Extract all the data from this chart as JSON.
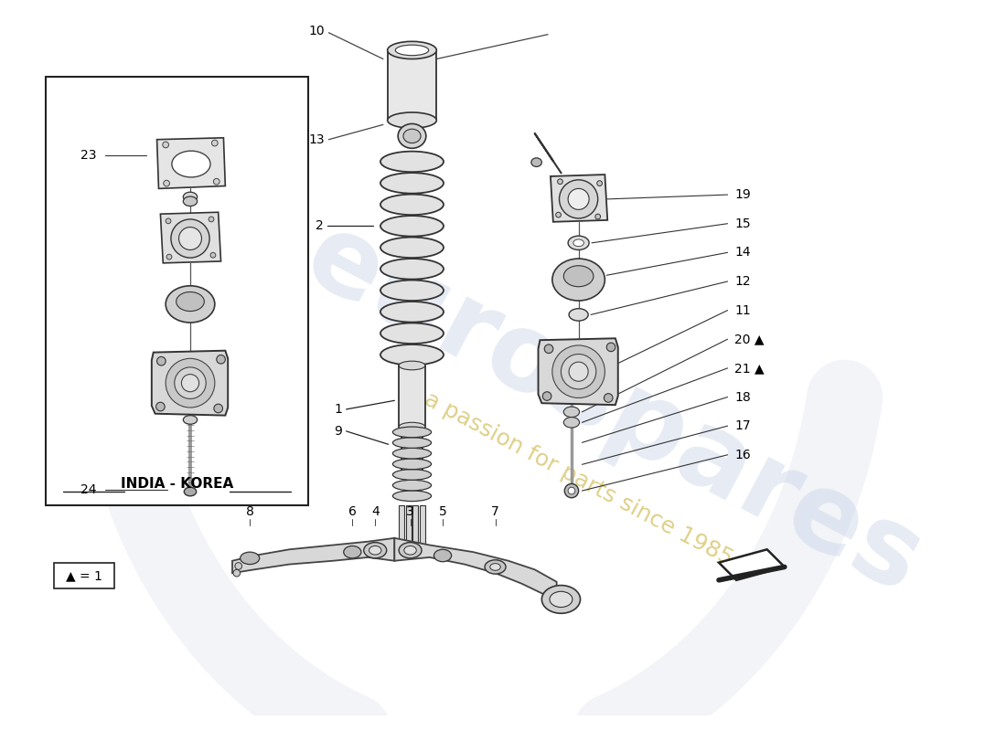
{
  "bg_color": "#ffffff",
  "watermark1": "eurospares",
  "watermark2": "a passion for parts since 1985",
  "india_korea": "INDIA - KOREA",
  "legend": "▲ = 1"
}
